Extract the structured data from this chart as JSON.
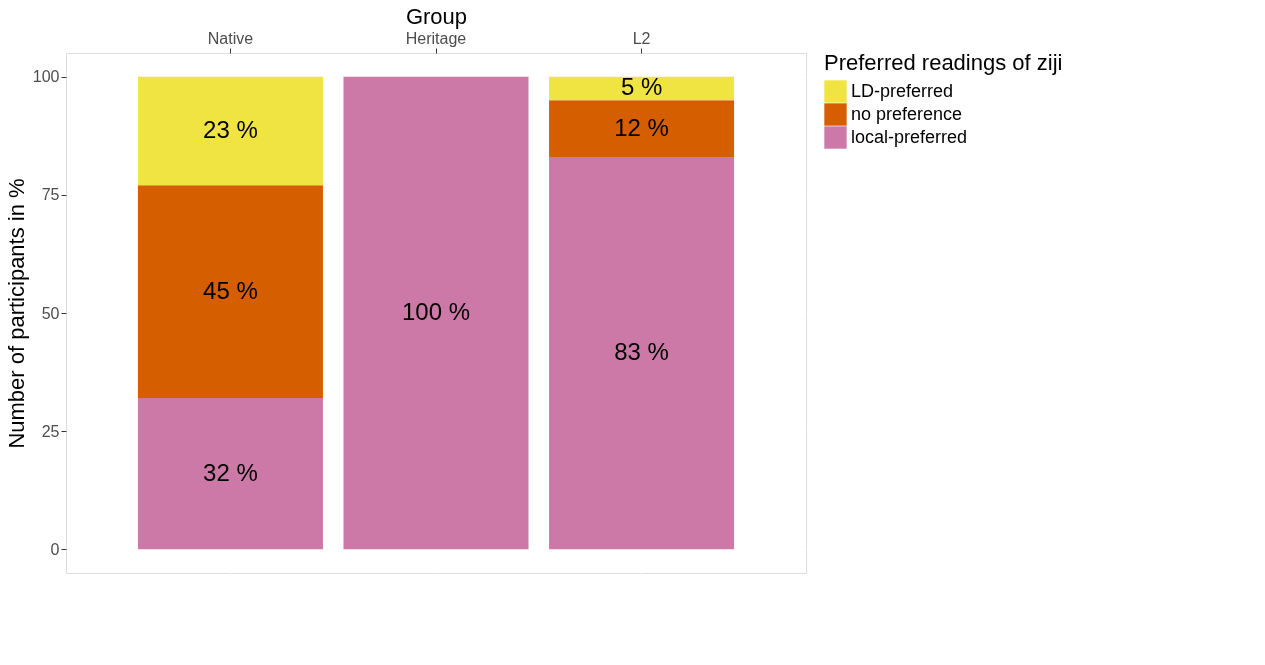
{
  "chart_data": {
    "type": "bar",
    "stacked": true,
    "xlabel": "Group",
    "ylabel": "Number of participants in %",
    "legend_title": "Preferred readings of ziji",
    "categories": [
      "Native",
      "Heritage",
      "L2"
    ],
    "series": [
      {
        "name": "local-preferred",
        "color": "#cc79a7",
        "values": [
          32,
          100,
          83
        ],
        "value_labels": [
          "32 %",
          "100 %",
          "83 %"
        ]
      },
      {
        "name": "no preference",
        "color": "#d55e00",
        "values": [
          45,
          0,
          12
        ],
        "value_labels": [
          "45 %",
          null,
          "12 %"
        ]
      },
      {
        "name": "LD-preferred",
        "color": "#f0e442",
        "values": [
          23,
          0,
          5
        ],
        "value_labels": [
          "23 %",
          null,
          "5 %"
        ]
      }
    ],
    "ylim": [
      -5,
      105
    ],
    "yticks": [
      0,
      25,
      50,
      75,
      100
    ],
    "grid": true,
    "legend": "right"
  }
}
